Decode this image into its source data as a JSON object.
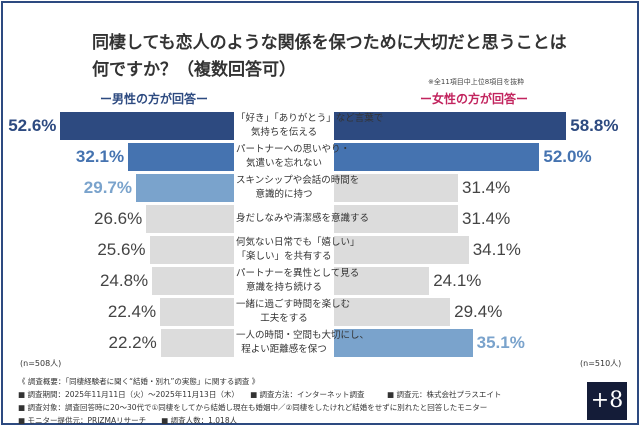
{
  "chart_data": {
    "type": "bar",
    "title": [
      "同棲しても恋人のような関係を保つために大切だと思うことは",
      "何ですか？（複数回答可）"
    ],
    "note": "※全11項目中上位8項目を抜粋",
    "categories": [
      [
        "「好き」「ありがとう」など言葉で",
        "気持ちを伝える"
      ],
      [
        "パートナーへの思いやり・",
        "気遣いを忘れない"
      ],
      [
        "スキンシップや会話の時間を",
        "意識的に持つ"
      ],
      [
        "身だしなみや清潔感を意識する"
      ],
      [
        "何気ない日常でも「嬉しい」",
        "「楽しい」を共有する"
      ],
      [
        "パートナーを異性として見る",
        "意識を持ち続ける"
      ],
      [
        "一緒に過ごす時間を楽しむ",
        "工夫をする"
      ],
      [
        "一人の時間・空間も大切にし、",
        "程よい距離感を保つ"
      ]
    ],
    "series": [
      {
        "name": "ー男性の方が回答ー",
        "n": "(n=508人)",
        "values": [
          52.6,
          32.1,
          29.7,
          26.6,
          25.6,
          24.8,
          22.4,
          22.2
        ],
        "labels": [
          "52.6%",
          "32.1%",
          "29.7%",
          "26.6%",
          "25.6%",
          "24.8%",
          "22.4%",
          "22.2%"
        ],
        "colors": [
          "#2d4a80",
          "#4573b0",
          "#7aa3cc",
          "#dcdcdc",
          "#dcdcdc",
          "#dcdcdc",
          "#dcdcdc",
          "#dcdcdc"
        ]
      },
      {
        "name": "ー女性の方が回答ー",
        "n": "(n=510人)",
        "values": [
          58.8,
          52.0,
          31.4,
          31.4,
          34.1,
          24.1,
          29.4,
          35.1
        ],
        "labels": [
          "58.8%",
          "52.0%",
          "31.4%",
          "31.4%",
          "34.1%",
          "24.1%",
          "29.4%",
          "35.1%"
        ],
        "colors": [
          "#2d4a80",
          "#4573b0",
          "#dcdcdc",
          "#dcdcdc",
          "#dcdcdc",
          "#dcdcdc",
          "#dcdcdc",
          "#7aa3cc"
        ]
      }
    ],
    "unit": "%"
  },
  "footer": {
    "lines": [
      "《 調査概要：「同棲経験者に聞く“結婚・別れ”の実態」に関する調査 》",
      "■ 調査期間：2025年11月11日（火）～2025年11月13日（木）　　■ 調査方法：インターネット調査　　　■ 調査元：株式会社プラスエイト",
      "■ 調査対象：調査回答時に20～30代で①同棲をしてから結婚し現在も婚姻中／②同棲をしたけれど結婚をせずに別れたと回答したモニター",
      "■ モニター提供元：PRIZMAリサーチ　　■ 調査人数：1,018人"
    ],
    "logo": "+8"
  }
}
